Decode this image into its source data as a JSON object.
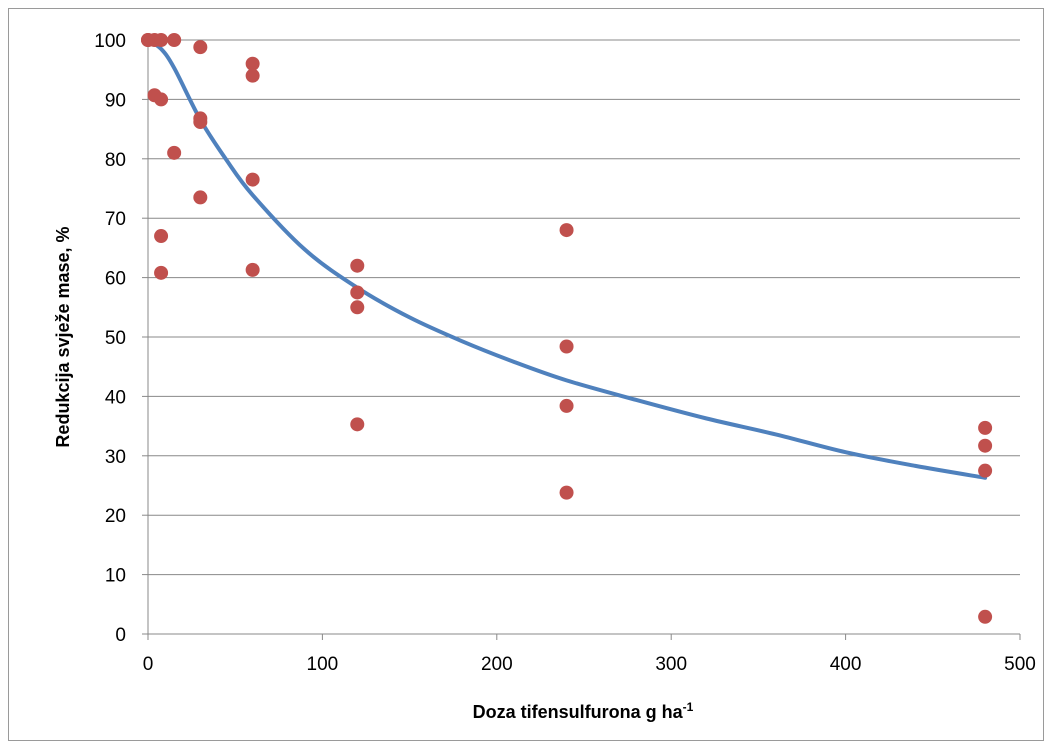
{
  "chart_data": {
    "type": "scatter",
    "xlabel": "Doza tifensulfurona g ha",
    "xlabel_superscript": "-1",
    "ylabel": "Redukcija svježe mase, %",
    "xlim": [
      0,
      500
    ],
    "ylim": [
      0,
      100
    ],
    "x_ticks": [
      "0",
      "100",
      "200",
      "300",
      "400",
      "500"
    ],
    "y_ticks": [
      "0",
      "10",
      "20",
      "30",
      "40",
      "50",
      "60",
      "70",
      "80",
      "90",
      "100"
    ],
    "grid": "horizontal",
    "legend": "none",
    "colors": {
      "points": "#c0504d",
      "curve": "#4f81bd",
      "grid": "#888888"
    },
    "series": [
      {
        "kind": "points",
        "points": [
          [
            0,
            100
          ],
          [
            0,
            100
          ],
          [
            3.75,
            100
          ],
          [
            7.5,
            100
          ],
          [
            15,
            100
          ],
          [
            3.75,
            90.7
          ],
          [
            7.5,
            90
          ],
          [
            7.5,
            67
          ],
          [
            7.5,
            60.8
          ],
          [
            15,
            81
          ],
          [
            30,
            98.8
          ],
          [
            30,
            86.8
          ],
          [
            30,
            86.2
          ],
          [
            30,
            73.5
          ],
          [
            60,
            96
          ],
          [
            60,
            94
          ],
          [
            60,
            76.5
          ],
          [
            60,
            61.3
          ],
          [
            120,
            62
          ],
          [
            120,
            57.5
          ],
          [
            120,
            55
          ],
          [
            120,
            35.3
          ],
          [
            240,
            68
          ],
          [
            240,
            48.4
          ],
          [
            240,
            38.4
          ],
          [
            240,
            23.8
          ],
          [
            480,
            34.7
          ],
          [
            480,
            31.7
          ],
          [
            480,
            27.5
          ],
          [
            480,
            2.9
          ]
        ]
      },
      {
        "kind": "fitted-curve",
        "points": [
          [
            0,
            100
          ],
          [
            7.5,
            98.5
          ],
          [
            15,
            95.3
          ],
          [
            30,
            86.6
          ],
          [
            45,
            79.8
          ],
          [
            60,
            73.9
          ],
          [
            90,
            64.7
          ],
          [
            120,
            58.3
          ],
          [
            150,
            53.3
          ],
          [
            180,
            49.3
          ],
          [
            210,
            45.8
          ],
          [
            240,
            42.7
          ],
          [
            280,
            39.4
          ],
          [
            320,
            36.3
          ],
          [
            360,
            33.6
          ],
          [
            400,
            30.6
          ],
          [
            440,
            28.3
          ],
          [
            480,
            26.3
          ]
        ]
      }
    ]
  }
}
